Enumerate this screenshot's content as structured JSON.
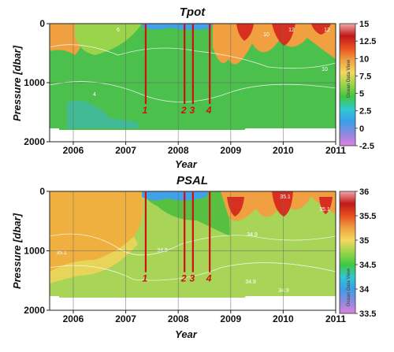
{
  "chart_data": [
    {
      "type": "heatmap",
      "title": "Tpot",
      "xlabel": "Year",
      "ylabel": "Pressure [dbar]",
      "x_ticks": [
        "2006",
        "2007",
        "2008",
        "2009",
        "2010",
        "2011"
      ],
      "y_ticks": [
        "0",
        "1000",
        "2000"
      ],
      "xlim": [
        2005.55,
        2011.0
      ],
      "ylim": [
        0,
        2000
      ],
      "y_inverted": true,
      "grid": true,
      "colorbar": {
        "ticks": [
          "15",
          "12.5",
          "10",
          "7.5",
          "5",
          "2.5",
          "0",
          "-2.5"
        ],
        "range": [
          -2.5,
          15
        ],
        "stops": [
          "#e080e0",
          "#8a8ae0",
          "#3a9ee8",
          "#30c8d0",
          "#40c840",
          "#9ad44a",
          "#f4d860",
          "#f0a040",
          "#e85020",
          "#c01818",
          "#f2a8a8"
        ],
        "watermark": "Ocean Data View"
      },
      "contour_labels": [
        "6",
        "4",
        "10",
        "12",
        "12",
        "10"
      ],
      "markers": [
        {
          "label": "1",
          "year": 2007.38
        },
        {
          "label": "2",
          "year": 2008.12
        },
        {
          "label": "3",
          "year": 2008.28
        },
        {
          "label": "4",
          "year": 2008.6
        }
      ],
      "background_color": "#4cc04c",
      "warm_color": "#f0a040",
      "hot_color": "#d83020",
      "cold_color": "#40a0e8"
    },
    {
      "type": "heatmap",
      "title": "PSAL",
      "xlabel": "Year",
      "ylabel": "Pressure [dbar]",
      "x_ticks": [
        "2006",
        "2007",
        "2008",
        "2009",
        "2010",
        "2011"
      ],
      "y_ticks": [
        "0",
        "1000",
        "2000"
      ],
      "xlim": [
        2005.55,
        2011.0
      ],
      "ylim": [
        0,
        2000
      ],
      "y_inverted": true,
      "grid": true,
      "colorbar": {
        "ticks": [
          "36",
          "35.5",
          "35",
          "34.5",
          "34",
          "33.5"
        ],
        "range": [
          33.5,
          36
        ],
        "stops": [
          "#e080e0",
          "#8a8ae0",
          "#3a9ee8",
          "#30c8d0",
          "#40c840",
          "#9ad44a",
          "#f4d860",
          "#f0a040",
          "#e85020",
          "#c01818",
          "#f2a8a8"
        ],
        "watermark": "Ocean Data View"
      },
      "contour_labels": [
        "35.1",
        "34.9",
        "34.9",
        "34.9",
        "35.1",
        "35.1",
        "34.9"
      ],
      "markers": [
        {
          "label": "1",
          "year": 2007.38
        },
        {
          "label": "2",
          "year": 2008.12
        },
        {
          "label": "3",
          "year": 2008.28
        },
        {
          "label": "4",
          "year": 2008.6
        }
      ],
      "background_color": "#a8d458",
      "warm_color": "#f0b040",
      "hot_color": "#d83020",
      "cold_color": "#40a0e8"
    }
  ]
}
